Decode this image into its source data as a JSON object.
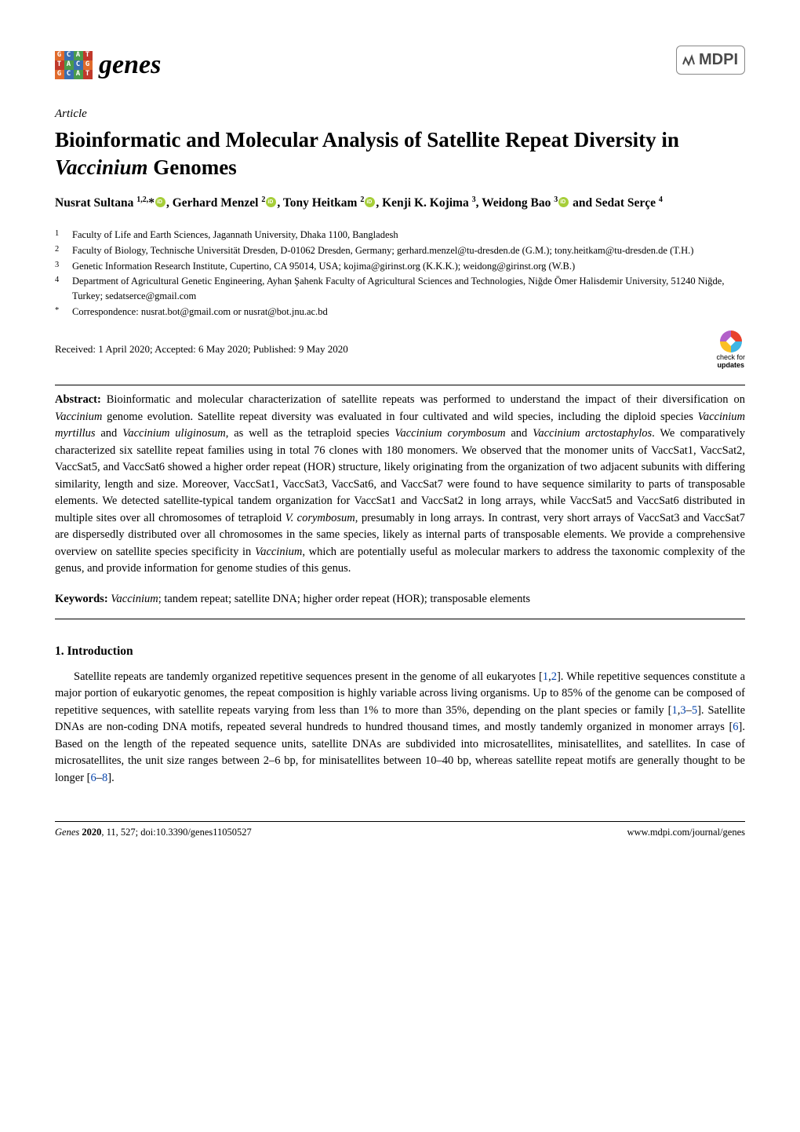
{
  "logo": {
    "rows": [
      [
        {
          "t": "G",
          "c": "#e06a2b"
        },
        {
          "t": "C",
          "c": "#3a6fb0"
        },
        {
          "t": "A",
          "c": "#4b9b4b"
        },
        {
          "t": "T",
          "c": "#c0392b"
        }
      ],
      [
        {
          "t": "T",
          "c": "#c0392b"
        },
        {
          "t": "A",
          "c": "#4b9b4b"
        },
        {
          "t": "C",
          "c": "#3a6fb0"
        },
        {
          "t": "G",
          "c": "#e06a2b"
        }
      ],
      [
        {
          "t": "G",
          "c": "#e06a2b"
        },
        {
          "t": "C",
          "c": "#3a6fb0"
        },
        {
          "t": "A",
          "c": "#4b9b4b"
        },
        {
          "t": "T",
          "c": "#c0392b"
        }
      ]
    ],
    "journal_name": "genes"
  },
  "publisher": "MDPI",
  "article_type": "Article",
  "title_pre": "Bioinformatic and Molecular Analysis of Satellite Repeat Diversity in ",
  "title_species": "Vaccinium",
  "title_post": " Genomes",
  "authors_html": "Nusrat Sultana <sup>1,2,</sup>*<span class='orcid' data-name='orcid-icon' data-interactable='false'></span>, Gerhard Menzel <sup>2</sup><span class='orcid' data-name='orcid-icon' data-interactable='false'></span>, Tony Heitkam <sup>2</sup><span class='orcid' data-name='orcid-icon' data-interactable='false'></span>, Kenji K. Kojima <sup>3</sup>, Weidong Bao <sup>3</sup><span class='orcid' data-name='orcid-icon' data-interactable='false'></span> and Sedat Serçe <sup>4</sup>",
  "affiliations": [
    {
      "n": "1",
      "t": "Faculty of Life and Earth Sciences, Jagannath University, Dhaka 1100, Bangladesh"
    },
    {
      "n": "2",
      "t": "Faculty of Biology, Technische Universität Dresden, D-01062 Dresden, Germany; gerhard.menzel@tu-dresden.de (G.M.); tony.heitkam@tu-dresden.de (T.H.)"
    },
    {
      "n": "3",
      "t": "Genetic Information Research Institute, Cupertino, CA 95014, USA; kojima@girinst.org (K.K.K.); weidong@girinst.org (W.B.)"
    },
    {
      "n": "4",
      "t": "Department of Agricultural Genetic Engineering, Ayhan Şahenk Faculty of Agricultural Sciences and Technologies, Niğde Ömer Halisdemir University, 51240 Niğde, Turkey; sedatserce@gmail.com"
    },
    {
      "n": "*",
      "t": "Correspondence: nusrat.bot@gmail.com or nusrat@bot.jnu.ac.bd"
    }
  ],
  "received": "Received: 1 April 2020; Accepted: 6 May 2020; Published: 9 May 2020",
  "check_updates": {
    "l1": "check for",
    "l2": "updates"
  },
  "abstract_label": "Abstract:",
  "abstract_html": "Bioinformatic and molecular characterization of satellite repeats was performed to understand the impact of their diversification on <span class='ital'>Vaccinium</span> genome evolution. Satellite repeat diversity was evaluated in four cultivated and wild species, including the diploid species <span class='ital'>Vaccinium myrtillus</span> and <span class='ital'>Vaccinium uliginosum</span>, as well as the tetraploid species <span class='ital'>Vaccinium corymbosum</span> and <span class='ital'>Vaccinium arctostaphylos</span>. We comparatively characterized six satellite repeat families using in total 76 clones with 180 monomers. We observed that the monomer units of VaccSat1, VaccSat2, VaccSat5, and VaccSat6 showed a higher order repeat (HOR) structure, likely originating from the organization of two adjacent subunits with differing similarity, length and size. Moreover, VaccSat1, VaccSat3, VaccSat6, and VaccSat7 were found to have sequence similarity to parts of transposable elements. We detected satellite-typical tandem organization for VaccSat1 and VaccSat2 in long arrays, while VaccSat5 and VaccSat6 distributed in multiple sites over all chromosomes of tetraploid <span class='ital'>V. corymbosum</span>, presumably in long arrays. In contrast, very short arrays of VaccSat3 and VaccSat7 are dispersedly distributed over all chromosomes in the same species, likely as internal parts of transposable elements. We provide a comprehensive overview on satellite species specificity in <span class='ital'>Vaccinium</span>, which are potentially useful as molecular markers to address the taxonomic complexity of the genus, and provide information for genome studies of this genus.",
  "keywords_label": "Keywords:",
  "keywords_html": "<span class='ital'>Vaccinium</span>; tandem repeat; satellite DNA; higher order repeat (HOR); transposable elements",
  "section1": "1. Introduction",
  "intro_html": "Satellite repeats are tandemly organized repetitive sequences present in the genome of all eukaryotes [<a class='ref' href='#'>1</a>,<a class='ref' href='#'>2</a>]. While repetitive sequences constitute a major portion of eukaryotic genomes, the repeat composition is highly variable across living organisms. Up to 85% of the genome can be composed of repetitive sequences, with satellite repeats varying from less than 1% to more than 35%, depending on the plant species or family [<a class='ref' href='#'>1</a>,<a class='ref' href='#'>3</a>–<a class='ref' href='#'>5</a>]. Satellite DNAs are non-coding DNA motifs, repeated several hundreds to hundred thousand times, and mostly tandemly organized in monomer arrays [<a class='ref' href='#'>6</a>]. Based on the length of the repeated sequence units, satellite DNAs are subdivided into microsatellites, minisatellites, and satellites. In case of microsatellites, the unit size ranges between 2–6 bp, for minisatellites between 10–40 bp, whereas satellite repeat motifs are generally thought to be longer [<a class='ref' href='#'>6</a>–<a class='ref' href='#'>8</a>].",
  "footer": {
    "left_italic": "Genes ",
    "left_bold": "2020",
    "left_rest": ", 11, 527; doi:10.3390/genes11050527",
    "right": "www.mdpi.com/journal/genes"
  }
}
